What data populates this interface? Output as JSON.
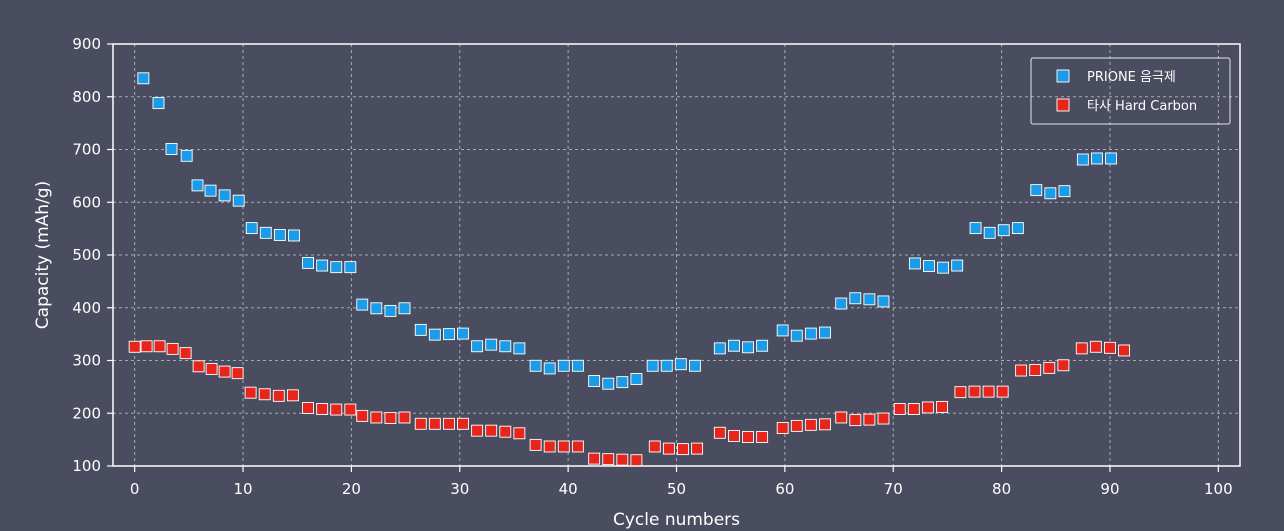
{
  "chart_data": {
    "type": "scatter",
    "title": "",
    "xlabel": "Cycle numbers",
    "ylabel": "Capacity (mAh/g)",
    "xlim": [
      -2,
      102
    ],
    "ylim": [
      100,
      900
    ],
    "x_ticks": [
      0,
      10,
      20,
      30,
      40,
      50,
      60,
      70,
      80,
      90,
      100
    ],
    "y_ticks": [
      100,
      200,
      300,
      400,
      500,
      600,
      700,
      800,
      900
    ],
    "grid": true,
    "legend_position": "top-right",
    "background_color": "#4a4d5f",
    "series": [
      {
        "name": "PRIONE 음극제",
        "color": "#1a9ce8",
        "x": [
          0.8,
          2.2,
          3.4,
          4.8,
          5.8,
          7.0,
          8.3,
          9.6,
          10.8,
          12.1,
          13.4,
          14.7,
          16.0,
          17.3,
          18.6,
          19.9,
          21.0,
          22.3,
          23.6,
          24.9,
          26.4,
          27.7,
          29.0,
          30.3,
          31.6,
          32.9,
          34.2,
          35.5,
          37.0,
          38.3,
          39.6,
          40.9,
          42.4,
          43.7,
          45.0,
          46.3,
          47.8,
          49.1,
          50.4,
          51.7,
          54.0,
          55.3,
          56.6,
          57.9,
          59.8,
          61.1,
          62.4,
          63.7,
          65.2,
          66.5,
          67.8,
          69.1,
          72.0,
          73.3,
          74.6,
          75.9,
          77.6,
          78.9,
          80.2,
          81.5,
          83.2,
          84.5,
          85.8,
          87.5,
          88.8,
          90.1
        ],
        "values": [
          835,
          788,
          701,
          688,
          632,
          622,
          613,
          603,
          551,
          542,
          538,
          537,
          485,
          480,
          477,
          477,
          406,
          399,
          394,
          399,
          358,
          349,
          350,
          351,
          327,
          330,
          327,
          323,
          290,
          285,
          290,
          290,
          261,
          256,
          259,
          265,
          290,
          290,
          293,
          290,
          323,
          328,
          325,
          328,
          357,
          347,
          351,
          353,
          408,
          418,
          416,
          412,
          484,
          479,
          476,
          480,
          551,
          542,
          547,
          551,
          623,
          617,
          621,
          681,
          683,
          683
        ]
      },
      {
        "name": "타사 Hard Carbon",
        "color": "#e8251c",
        "x": [
          0.0,
          1.1,
          2.3,
          3.5,
          4.7,
          5.9,
          7.1,
          8.3,
          9.5,
          10.7,
          12.0,
          13.3,
          14.6,
          16.0,
          17.3,
          18.6,
          19.9,
          21.0,
          22.3,
          23.6,
          24.9,
          26.4,
          27.7,
          29.0,
          30.3,
          31.6,
          32.9,
          34.2,
          35.5,
          37.0,
          38.3,
          39.6,
          40.9,
          42.4,
          43.7,
          45.0,
          46.3,
          48.0,
          49.3,
          50.6,
          51.9,
          54.0,
          55.3,
          56.6,
          57.9,
          59.8,
          61.1,
          62.4,
          63.7,
          65.2,
          66.5,
          67.8,
          69.1,
          70.6,
          71.9,
          73.2,
          74.5,
          76.2,
          77.5,
          78.8,
          80.1,
          81.8,
          83.1,
          84.4,
          85.7,
          87.4,
          88.7,
          90.0,
          91.3
        ],
        "values": [
          326,
          327,
          327,
          322,
          314,
          289,
          284,
          279,
          276,
          239,
          236,
          233,
          234,
          210,
          208,
          207,
          207,
          195,
          192,
          191,
          192,
          180,
          180,
          180,
          180,
          167,
          167,
          165,
          162,
          140,
          137,
          137,
          137,
          114,
          113,
          112,
          111,
          137,
          133,
          132,
          133,
          163,
          157,
          155,
          155,
          172,
          176,
          178,
          179,
          192,
          187,
          188,
          190,
          208,
          208,
          211,
          212,
          240,
          241,
          241,
          241,
          281,
          282,
          286,
          291,
          323,
          326,
          324,
          319
        ]
      }
    ]
  }
}
